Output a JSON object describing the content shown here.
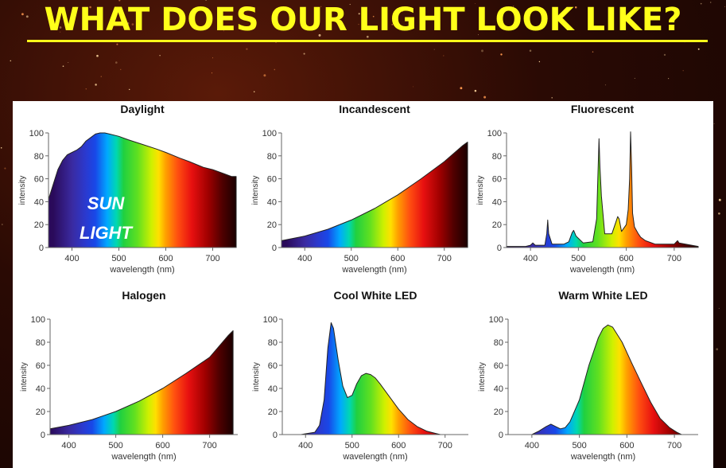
{
  "headline": "WHAT DOES OUR LIGHT LOOK LIKE?",
  "sun_label": [
    "SUN",
    "LIGHT"
  ],
  "colors": {
    "headline": "#ffff1a",
    "panel": "#ffffff",
    "background": "#2a0a04"
  },
  "chart_data": [
    {
      "type": "area",
      "title": "Daylight",
      "xlabel": "wavelength (nm)",
      "ylabel": "intensity",
      "xlim": [
        350,
        750
      ],
      "ylim": [
        0,
        100
      ],
      "xticks": [
        400,
        500,
        600,
        700
      ],
      "yticks": [
        0,
        20,
        40,
        60,
        80,
        100
      ],
      "x": [
        350,
        360,
        370,
        380,
        390,
        400,
        410,
        420,
        430,
        440,
        450,
        460,
        470,
        480,
        500,
        520,
        550,
        580,
        600,
        630,
        650,
        680,
        700,
        720,
        740,
        750
      ],
      "y": [
        42,
        55,
        68,
        76,
        81,
        83,
        85,
        88,
        93,
        96,
        99,
        100,
        100,
        99,
        97,
        94,
        90,
        86,
        83,
        78,
        75,
        70,
        68,
        65,
        62,
        62
      ]
    },
    {
      "type": "area",
      "title": "Incandescent",
      "xlabel": "wavelength (nm)",
      "ylabel": "intensity",
      "xlim": [
        350,
        750
      ],
      "ylim": [
        0,
        100
      ],
      "xticks": [
        400,
        500,
        600,
        700
      ],
      "yticks": [
        0,
        20,
        40,
        60,
        80,
        100
      ],
      "x": [
        350,
        400,
        450,
        500,
        550,
        600,
        650,
        700,
        740,
        750
      ],
      "y": [
        6,
        10,
        16,
        24,
        34,
        46,
        60,
        75,
        89,
        92
      ]
    },
    {
      "type": "area",
      "title": "Fluorescent",
      "xlabel": "wavelength (nm)",
      "ylabel": "intensity",
      "xlim": [
        350,
        750
      ],
      "ylim": [
        0,
        100
      ],
      "xticks": [
        400,
        500,
        600,
        700
      ],
      "yticks": [
        0,
        20,
        40,
        60,
        80,
        100
      ],
      "x": [
        350,
        390,
        400,
        405,
        410,
        430,
        434,
        436,
        438,
        445,
        470,
        480,
        487,
        490,
        495,
        510,
        530,
        538,
        543,
        545,
        548,
        555,
        570,
        578,
        582,
        585,
        590,
        600,
        604,
        607,
        609,
        611,
        613,
        617,
        625,
        630,
        640,
        660,
        700,
        707,
        710,
        750
      ],
      "y": [
        1,
        1,
        2,
        4,
        2,
        2,
        12,
        24,
        12,
        3,
        3,
        5,
        13,
        15,
        10,
        4,
        5,
        25,
        95,
        70,
        45,
        12,
        12,
        22,
        27,
        25,
        14,
        20,
        33,
        60,
        101,
        70,
        30,
        18,
        12,
        9,
        6,
        3,
        3,
        6,
        4,
        1
      ]
    },
    {
      "type": "area",
      "title": "Halogen",
      "xlabel": "wavelength (nm)",
      "ylabel": "intensity",
      "xlim": [
        360,
        760
      ],
      "ylim": [
        0,
        100
      ],
      "xticks": [
        400,
        500,
        600,
        700
      ],
      "yticks": [
        0,
        20,
        40,
        60,
        80,
        100
      ],
      "x": [
        360,
        400,
        450,
        500,
        550,
        600,
        650,
        700,
        740,
        750
      ],
      "y": [
        5,
        8,
        13,
        20,
        29,
        40,
        53,
        67,
        86,
        90
      ]
    },
    {
      "type": "area",
      "title": "Cool White LED",
      "xlabel": "wavelength (nm)",
      "ylabel": "intensity",
      "xlim": [
        350,
        750
      ],
      "ylim": [
        0,
        100
      ],
      "xticks": [
        400,
        500,
        600,
        700
      ],
      "yticks": [
        0,
        20,
        40,
        60,
        80,
        100
      ],
      "x": [
        390,
        420,
        430,
        440,
        448,
        455,
        460,
        470,
        480,
        490,
        500,
        510,
        520,
        530,
        540,
        550,
        560,
        580,
        600,
        620,
        640,
        660,
        680,
        690
      ],
      "y": [
        0,
        2,
        8,
        30,
        75,
        97,
        92,
        65,
        42,
        32,
        34,
        44,
        51,
        53,
        52,
        49,
        44,
        33,
        22,
        13,
        7,
        3,
        1,
        0
      ]
    },
    {
      "type": "area",
      "title": "Warm White LED",
      "xlabel": "wavelength (nm)",
      "ylabel": "intensity",
      "xlim": [
        350,
        750
      ],
      "ylim": [
        0,
        100
      ],
      "xticks": [
        400,
        500,
        600,
        700
      ],
      "yticks": [
        0,
        20,
        40,
        60,
        80,
        100
      ],
      "x": [
        400,
        415,
        430,
        440,
        450,
        460,
        470,
        480,
        500,
        520,
        540,
        550,
        560,
        570,
        590,
        610,
        630,
        650,
        670,
        690,
        705,
        715
      ],
      "y": [
        0,
        3,
        7,
        9,
        7,
        5,
        6,
        11,
        30,
        60,
        84,
        92,
        95,
        93,
        80,
        62,
        45,
        28,
        14,
        6,
        2,
        0
      ]
    }
  ]
}
